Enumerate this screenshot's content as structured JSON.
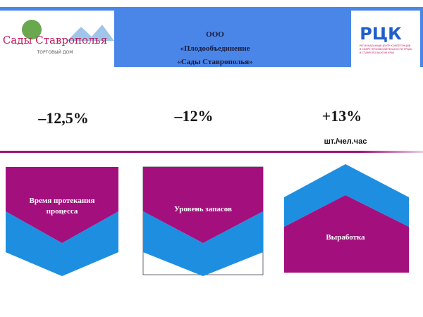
{
  "header": {
    "company": [
      "ООО",
      "«Плодообъединение",
      "«Сады Ставрополья»"
    ],
    "left_logo": {
      "name": "Сады Ставрополья",
      "subtitle": "ТОРГОВЫЙ ДОМ"
    },
    "right_logo": {
      "name": "РЦК",
      "caption": [
        "РЕГИОНАЛЬНЫЙ ЦЕНТР КОМПЕТЕНЦИЙ",
        "В СФЕРЕ ПРОИЗВОДИТЕЛЬНОСТИ ТРУДА",
        "В СТАВРОПОЛЬСКОМ КРАЕ"
      ]
    }
  },
  "metrics": [
    {
      "value": "–12,5%"
    },
    {
      "value": "–12%"
    },
    {
      "value": "+13%",
      "unit": "шт./чел.час"
    }
  ],
  "blocks": [
    {
      "label": [
        "Время протекания",
        "процесса"
      ]
    },
    {
      "label": [
        "Уровень запасов"
      ]
    },
    {
      "label": [
        "Выработка"
      ]
    }
  ]
}
